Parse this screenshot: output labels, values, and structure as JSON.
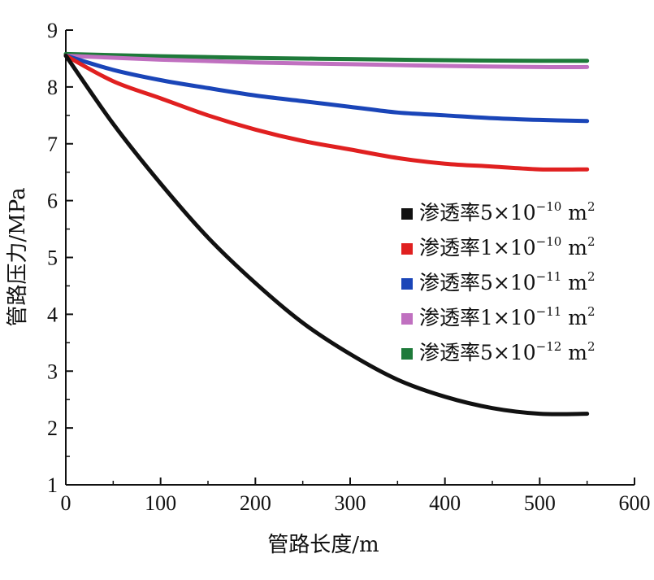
{
  "chart_data": {
    "type": "line",
    "title": "",
    "xlabel": "管路长度/m",
    "ylabel": "管路压力/MPa",
    "xlim": [
      0,
      600
    ],
    "ylim": [
      1,
      9
    ],
    "xticks": [
      0,
      100,
      200,
      300,
      400,
      500,
      600
    ],
    "yticks": [
      1,
      2,
      3,
      4,
      5,
      6,
      7,
      8,
      9
    ],
    "grid": false,
    "legend_position": "right-middle",
    "series": [
      {
        "name": "渗透率5×10⁻¹⁰ m²",
        "legend_prefix": "渗透率5×10",
        "legend_exp": "−10",
        "legend_unit": " m",
        "legend_unit_exp": "2",
        "color": "#111111",
        "x": [
          0,
          50,
          100,
          150,
          200,
          250,
          300,
          350,
          400,
          450,
          500,
          550
        ],
        "y": [
          8.55,
          7.35,
          6.3,
          5.35,
          4.55,
          3.85,
          3.3,
          2.85,
          2.55,
          2.35,
          2.25,
          2.25
        ]
      },
      {
        "name": "渗透率1×10⁻¹⁰ m²",
        "legend_prefix": "渗透率1×10",
        "legend_exp": "−10",
        "legend_unit": " m",
        "legend_unit_exp": "2",
        "color": "#e02020",
        "x": [
          0,
          50,
          100,
          150,
          200,
          250,
          300,
          350,
          400,
          450,
          500,
          550
        ],
        "y": [
          8.55,
          8.1,
          7.8,
          7.5,
          7.25,
          7.05,
          6.9,
          6.75,
          6.65,
          6.6,
          6.55,
          6.55
        ]
      },
      {
        "name": "渗透率5×10⁻¹¹ m²",
        "legend_prefix": "渗透率5×10",
        "legend_exp": "−11",
        "legend_unit": " m",
        "legend_unit_exp": "2",
        "color": "#1a45b8",
        "x": [
          0,
          50,
          100,
          150,
          200,
          250,
          300,
          350,
          400,
          450,
          500,
          550
        ],
        "y": [
          8.55,
          8.3,
          8.12,
          7.98,
          7.85,
          7.75,
          7.65,
          7.55,
          7.5,
          7.45,
          7.42,
          7.4
        ]
      },
      {
        "name": "渗透率1×10⁻¹¹ m²",
        "legend_prefix": "渗透率1×10",
        "legend_exp": "−11",
        "legend_unit": " m",
        "legend_unit_exp": "2",
        "color": "#c070c0",
        "x": [
          0,
          100,
          200,
          300,
          400,
          500,
          550
        ],
        "y": [
          8.55,
          8.48,
          8.43,
          8.4,
          8.37,
          8.35,
          8.35
        ]
      },
      {
        "name": "渗透率5×10⁻¹² m²",
        "legend_prefix": "渗透率5×10",
        "legend_exp": "−12",
        "legend_unit": " m",
        "legend_unit_exp": "2",
        "color": "#1e7a3a",
        "x": [
          0,
          100,
          200,
          300,
          400,
          500,
          550
        ],
        "y": [
          8.58,
          8.54,
          8.51,
          8.49,
          8.47,
          8.46,
          8.46
        ]
      }
    ]
  }
}
